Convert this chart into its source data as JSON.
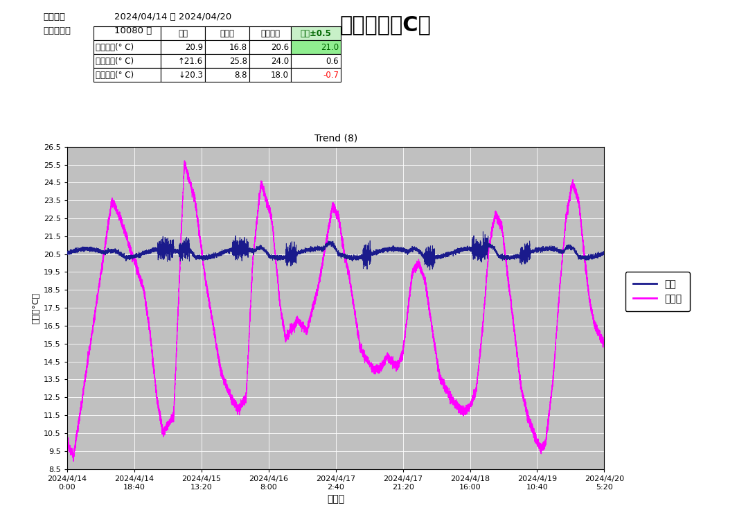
{
  "title": "自己評価【C】",
  "chart_title": "Trend (8)",
  "period_label": "対象期間",
  "period_value": "2024/04/14 ～ 2024/04/20",
  "count_label": "計測記録数",
  "count_value": "10080 回",
  "table_headers": [
    "",
    "室温",
    "外気温",
    "エアコン",
    "目標±0.5"
  ],
  "table_rows": [
    [
      "平均温度(° C)",
      "20.9",
      "16.8",
      "20.6",
      "21.0"
    ],
    [
      "最高温度(° C)",
      "↑21.6",
      "25.8",
      "24.0",
      "0.6"
    ],
    [
      "最低温度(° C)",
      "↓20.3",
      "8.8",
      "18.0",
      "-0.7"
    ]
  ],
  "ylabel": "温度（°C）",
  "xlabel": "測定日",
  "yticks": [
    8.5,
    9.5,
    10.5,
    11.5,
    12.5,
    13.5,
    14.5,
    15.5,
    16.5,
    17.5,
    18.5,
    19.5,
    20.5,
    21.5,
    22.5,
    23.5,
    24.5,
    25.5,
    26.5
  ],
  "ylim": [
    8.5,
    26.5
  ],
  "xtick_labels": [
    "2024/4/14\n0:00",
    "2024/4/14\n18:40",
    "2024/4/15\n13:20",
    "2024/4/16\n8:00",
    "2024/4/17\n2:40",
    "2024/4/17\n21:20",
    "2024/4/18\n16:00",
    "2024/4/19\n10:40",
    "2024/4/20\n5:20"
  ],
  "plot_bg_color": "#C0C0C0",
  "outer_bg_color": "#FFFFFF",
  "grid_color": "#FFFFFF",
  "room_temp_color": "#1a1a8c",
  "outside_temp_color": "#FF00FF",
  "legend_room": "室温",
  "legend_outside": "外気温"
}
